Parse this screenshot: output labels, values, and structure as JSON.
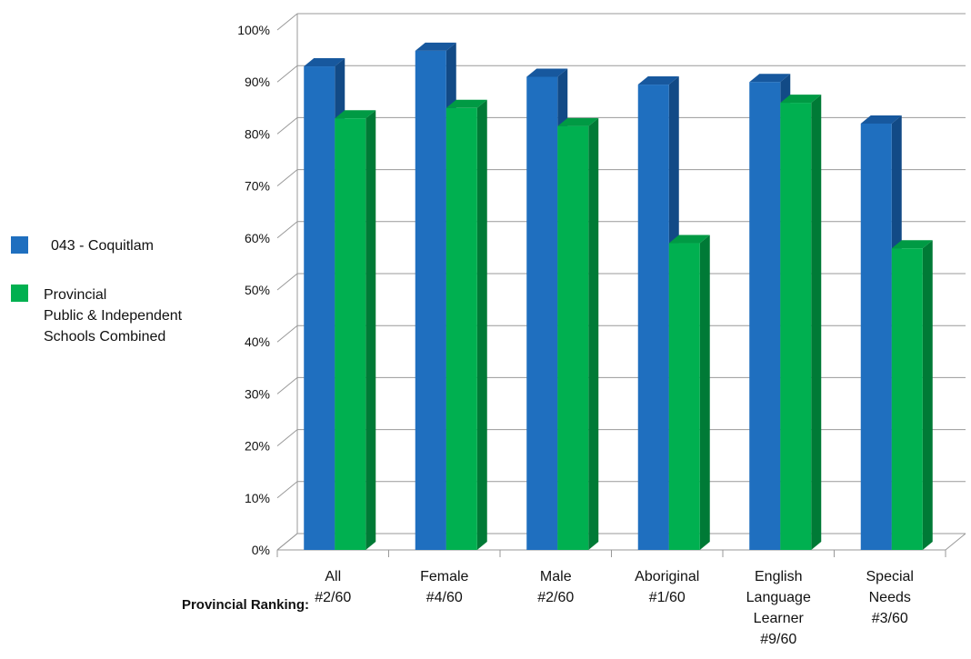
{
  "chart_data": {
    "type": "bar",
    "title": "",
    "xlabel": "",
    "ylabel": "",
    "ylim": [
      0,
      100
    ],
    "y_tick_suffix": "%",
    "y_ticks": [
      "0%",
      "10%",
      "20%",
      "30%",
      "40%",
      "50%",
      "60%",
      "70%",
      "80%",
      "90%",
      "100%"
    ],
    "grid": true,
    "three_d": true,
    "legend_position": "left",
    "categories": [
      {
        "lines": [
          "All"
        ],
        "rank": "#2/60"
      },
      {
        "lines": [
          "Female"
        ],
        "rank": "#4/60"
      },
      {
        "lines": [
          "Male"
        ],
        "rank": "#2/60"
      },
      {
        "lines": [
          "Aboriginal"
        ],
        "rank": "#1/60"
      },
      {
        "lines": [
          "English",
          "Language",
          "Learner"
        ],
        "rank": "#9/60"
      },
      {
        "lines": [
          "Special",
          "Needs"
        ],
        "rank": "#3/60"
      }
    ],
    "ranking_label": "Provincial Ranking:",
    "series": [
      {
        "name": "043 - Coquitlam",
        "color": "#1f6fbf",
        "side_color": "#124a86",
        "top_color": "#17589e",
        "values": [
          93,
          96,
          91,
          89.5,
          90,
          82
        ]
      },
      {
        "name_lines": [
          "Provincial",
          "Public & Independent",
          "Schools Combined"
        ],
        "color": "#00b050",
        "side_color": "#007a36",
        "top_color": "#009a44",
        "values": [
          83,
          85,
          81.5,
          59,
          86,
          58
        ]
      }
    ]
  }
}
